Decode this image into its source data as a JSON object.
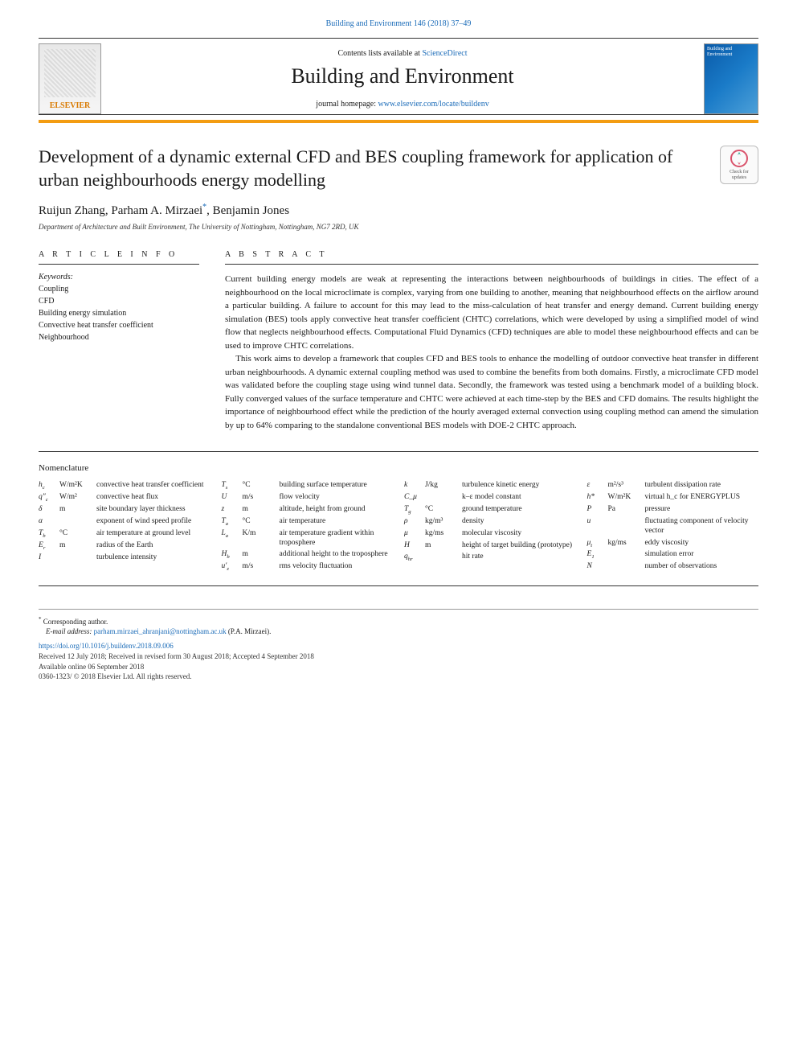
{
  "colors": {
    "link": "#1a6bb8",
    "accent_rule": "#f39c12",
    "text": "#1a1a1a",
    "cover_gradient": [
      "#0a5aa8",
      "#1a7bc8",
      "#4da0d8"
    ]
  },
  "header": {
    "top_citation": "Building and Environment 146 (2018) 37–49",
    "contents_prefix": "Contents lists available at ",
    "contents_link": "ScienceDirect",
    "journal_name": "Building and Environment",
    "homepage_prefix": "journal homepage: ",
    "homepage_link": "www.elsevier.com/locate/buildenv",
    "publisher_logo_text": "ELSEVIER",
    "cover_text": "Building and Environment"
  },
  "updates_badge": {
    "line1": "Check for",
    "line2": "updates"
  },
  "article": {
    "title": "Development of a dynamic external CFD and BES coupling framework for application of urban neighbourhoods energy modelling",
    "authors_html": "Ruijun Zhang, Parham A. Mirzaei*, Benjamin Jones",
    "authors": [
      {
        "name": "Ruijun Zhang",
        "corr": false
      },
      {
        "name": "Parham A. Mirzaei",
        "corr": true
      },
      {
        "name": "Benjamin Jones",
        "corr": false
      }
    ],
    "affiliation": "Department of Architecture and Built Environment, The University of Nottingham, Nottingham, NG7 2RD, UK"
  },
  "info": {
    "heading": "A R T I C L E  I N F O",
    "keywords_label": "Keywords:",
    "keywords": [
      "Coupling",
      "CFD",
      "Building energy simulation",
      "Convective heat transfer coefficient",
      "Neighbourhood"
    ]
  },
  "abstract": {
    "heading": "A B S T R A C T",
    "paragraphs": [
      "Current building energy models are weak at representing the interactions between neighbourhoods of buildings in cities. The effect of a neighbourhood on the local microclimate is complex, varying from one building to another, meaning that neighbourhood effects on the airflow around a particular building. A failure to account for this may lead to the miss-calculation of heat transfer and energy demand. Current building energy simulation (BES) tools apply convective heat transfer coefficient (CHTC) correlations, which were developed by using a simplified model of wind flow that neglects neighbourhood effects. Computational Fluid Dynamics (CFD) techniques are able to model these neighbourhood effects and can be used to improve CHTC correlations.",
      "This work aims to develop a framework that couples CFD and BES tools to enhance the modelling of outdoor convective heat transfer in different urban neighbourhoods. A dynamic external coupling method was used to combine the benefits from both domains. Firstly, a microclimate CFD model was validated before the coupling stage using wind tunnel data. Secondly, the framework was tested using a benchmark model of a building block. Fully converged values of the surface temperature and CHTC were achieved at each time-step by the BES and CFD domains. The results highlight the importance of neighbourhood effect while the prediction of the hourly averaged external convection using coupling method can amend the simulation by up to 64% comparing to the standalone conventional BES models with DOE-2 CHTC approach."
    ]
  },
  "nomenclature": {
    "title": "Nomenclature",
    "cols": [
      [
        {
          "sym": "h_c",
          "unit": "W/m²K",
          "desc": "convective heat transfer coefficient"
        },
        {
          "sym": "q″_c",
          "unit": "W/m²",
          "desc": "convective heat flux"
        },
        {
          "sym": "δ",
          "unit": "m",
          "desc": "site boundary layer thickness"
        },
        {
          "sym": "α",
          "unit": "",
          "desc": "exponent of wind speed profile"
        },
        {
          "sym": "T_b",
          "unit": "°C",
          "desc": "air temperature at ground level"
        },
        {
          "sym": "E_r",
          "unit": "m",
          "desc": "radius of the Earth"
        },
        {
          "sym": "I",
          "unit": "",
          "desc": "turbulence intensity"
        }
      ],
      [
        {
          "sym": "T_s",
          "unit": "°C",
          "desc": "building surface temperature"
        },
        {
          "sym": "U",
          "unit": "m/s",
          "desc": "flow velocity"
        },
        {
          "sym": "z",
          "unit": "m",
          "desc": "altitude, height from ground"
        },
        {
          "sym": "T_a",
          "unit": "°C",
          "desc": "air temperature"
        },
        {
          "sym": "L_a",
          "unit": "K/m",
          "desc": "air temperature gradient within troposphere"
        },
        {
          "sym": "H_b",
          "unit": "m",
          "desc": "additional height to the troposphere"
        },
        {
          "sym": "u′_z",
          "unit": "m/s",
          "desc": "rms velocity fluctuation"
        }
      ],
      [
        {
          "sym": "k",
          "unit": "J/kg",
          "desc": "turbulence kinetic energy"
        },
        {
          "sym": "C_μ",
          "unit": "",
          "desc": "k–ε model constant"
        },
        {
          "sym": "T_g",
          "unit": "°C",
          "desc": "ground temperature"
        },
        {
          "sym": "ρ",
          "unit": "kg/m³",
          "desc": "density"
        },
        {
          "sym": "μ",
          "unit": "kg/ms",
          "desc": "molecular viscosity"
        },
        {
          "sym": "H",
          "unit": "m",
          "desc": "height of target building (prototype)"
        },
        {
          "sym": "q_hr",
          "unit": "",
          "desc": "hit rate"
        }
      ],
      [
        {
          "sym": "ε",
          "unit": "m²/s³",
          "desc": "turbulent dissipation rate"
        },
        {
          "sym": "h*",
          "unit": "W/m²K",
          "desc": "virtual h_c for ENERGYPLUS"
        },
        {
          "sym": "P",
          "unit": "Pa",
          "desc": "pressure"
        },
        {
          "sym": "u",
          "unit": "",
          "desc": "fluctuating component of velocity vector"
        },
        {
          "sym": "μ_t",
          "unit": "kg/ms",
          "desc": "eddy viscosity"
        },
        {
          "sym": "E_1",
          "unit": "",
          "desc": "simulation error"
        },
        {
          "sym": "N",
          "unit": "",
          "desc": "number of observations"
        }
      ]
    ]
  },
  "footer": {
    "corr_label": "Corresponding author.",
    "email_label": "E-mail address:",
    "email": "parham.mirzaei_ahranjani@nottingham.ac.uk",
    "email_suffix": "(P.A. Mirzaei).",
    "doi": "https://doi.org/10.1016/j.buildenv.2018.09.006",
    "received": "Received 12 July 2018; Received in revised form 30 August 2018; Accepted 4 September 2018",
    "available": "Available online 06 September 2018",
    "copyright": "0360-1323/ © 2018 Elsevier Ltd. All rights reserved."
  }
}
